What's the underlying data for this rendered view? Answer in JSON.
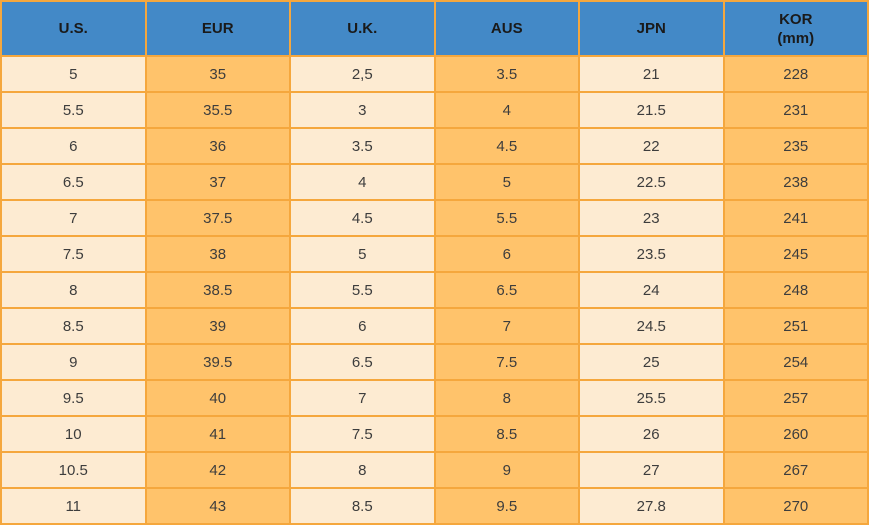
{
  "chart_data": {
    "type": "table",
    "columns": [
      {
        "key": "us",
        "label": "U.S.",
        "sublabel": ""
      },
      {
        "key": "eur",
        "label": "EUR",
        "sublabel": ""
      },
      {
        "key": "uk",
        "label": "U.K.",
        "sublabel": ""
      },
      {
        "key": "aus",
        "label": "AUS",
        "sublabel": ""
      },
      {
        "key": "jpn",
        "label": "JPN",
        "sublabel": ""
      },
      {
        "key": "kor",
        "label": "KOR",
        "sublabel": "(mm)"
      }
    ],
    "rows": [
      [
        "5",
        "35",
        "2,5",
        "3.5",
        "21",
        "228"
      ],
      [
        "5.5",
        "35.5",
        "3",
        "4",
        "21.5",
        "231"
      ],
      [
        "6",
        "36",
        "3.5",
        "4.5",
        "22",
        "235"
      ],
      [
        "6.5",
        "37",
        "4",
        "5",
        "22.5",
        "238"
      ],
      [
        "7",
        "37.5",
        "4.5",
        "5.5",
        "23",
        "241"
      ],
      [
        "7.5",
        "38",
        "5",
        "6",
        "23.5",
        "245"
      ],
      [
        "8",
        "38.5",
        "5.5",
        "6.5",
        "24",
        "248"
      ],
      [
        "8.5",
        "39",
        "6",
        "7",
        "24.5",
        "251"
      ],
      [
        "9",
        "39.5",
        "6.5",
        "7.5",
        "25",
        "254"
      ],
      [
        "9.5",
        "40",
        "7",
        "8",
        "25.5",
        "257"
      ],
      [
        "10",
        "41",
        "7.5",
        "8.5",
        "26",
        "260"
      ],
      [
        "10.5",
        "42",
        "8",
        "9",
        "27",
        "267"
      ],
      [
        "11",
        "43",
        "8.5",
        "9.5",
        "27.8",
        "270"
      ]
    ],
    "layout": {
      "grid": true,
      "column_style_alternation": [
        "light",
        "orange"
      ]
    }
  },
  "colors": {
    "header_bg": "#4389C7",
    "header_text": "#1A1A1A",
    "cell_light": "#FDEBD2",
    "cell_orange": "#FFC36B",
    "border": "#F5A73D",
    "cell_text": "#3D3D3D",
    "page_bg": "#FFFFFF"
  }
}
